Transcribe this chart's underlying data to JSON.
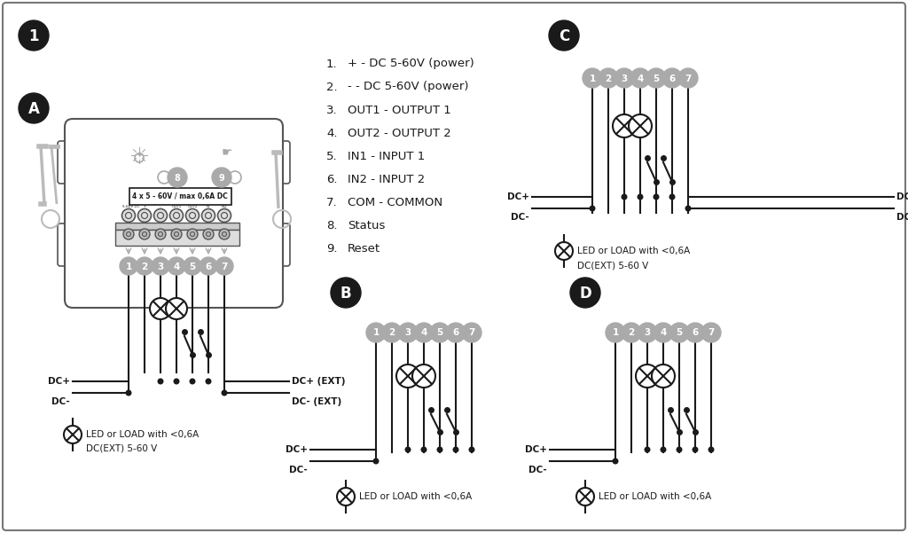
{
  "bg_color": "#ffffff",
  "line_color": "#1a1a1a",
  "node_fill": "#aaaaaa",
  "badge_fill": "#1a1a1a",
  "list_items": [
    [
      "+",
      "DC 5-60V (power)"
    ],
    [
      "-",
      "DC 5-60V (power)"
    ],
    [
      "OUT1",
      "OUTPUT 1"
    ],
    [
      "OUT2",
      "OUTPUT 2"
    ],
    [
      "IN1",
      "INPUT 1"
    ],
    [
      "IN2",
      "INPUT 2"
    ],
    [
      "COM",
      "COMMON"
    ],
    [
      "Status",
      ""
    ],
    [
      "Reset",
      ""
    ]
  ],
  "list_nums": [
    "1.",
    "2.",
    "3.",
    "4.",
    "5.",
    "6.",
    "7.",
    "8.",
    "9."
  ]
}
